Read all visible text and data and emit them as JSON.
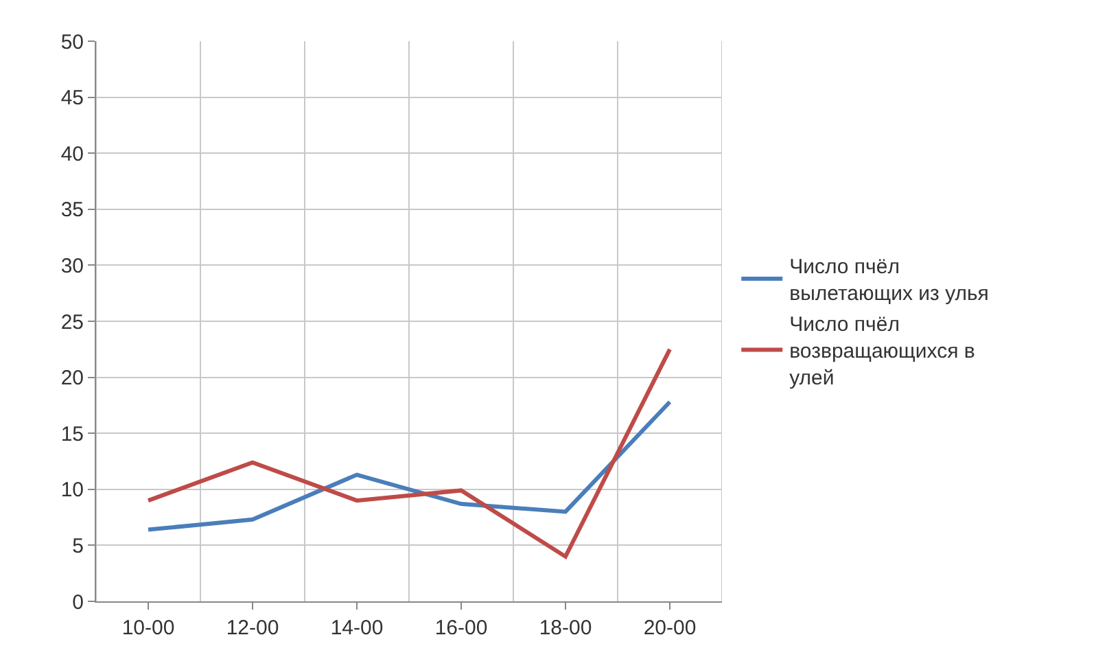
{
  "chart_data": {
    "type": "line",
    "categories": [
      "10-00",
      "12-00",
      "14-00",
      "16-00",
      "18-00",
      "20-00"
    ],
    "series": [
      {
        "name": "Число пчёл вылетающих из улья",
        "color": "#4a7ebb",
        "values": [
          6.4,
          7.3,
          11.3,
          8.7,
          8.0,
          17.8
        ]
      },
      {
        "name": "Число пчёл возвращающихся в улей",
        "color": "#be4b48",
        "values": [
          9.0,
          12.4,
          9.0,
          9.9,
          4.0,
          22.5
        ]
      }
    ],
    "ylim": [
      0,
      50
    ],
    "yticks": [
      0,
      5,
      10,
      15,
      20,
      25,
      30,
      35,
      40,
      45,
      50
    ],
    "grid": true,
    "legend": "right",
    "marker": "none",
    "line_style": "solid"
  }
}
